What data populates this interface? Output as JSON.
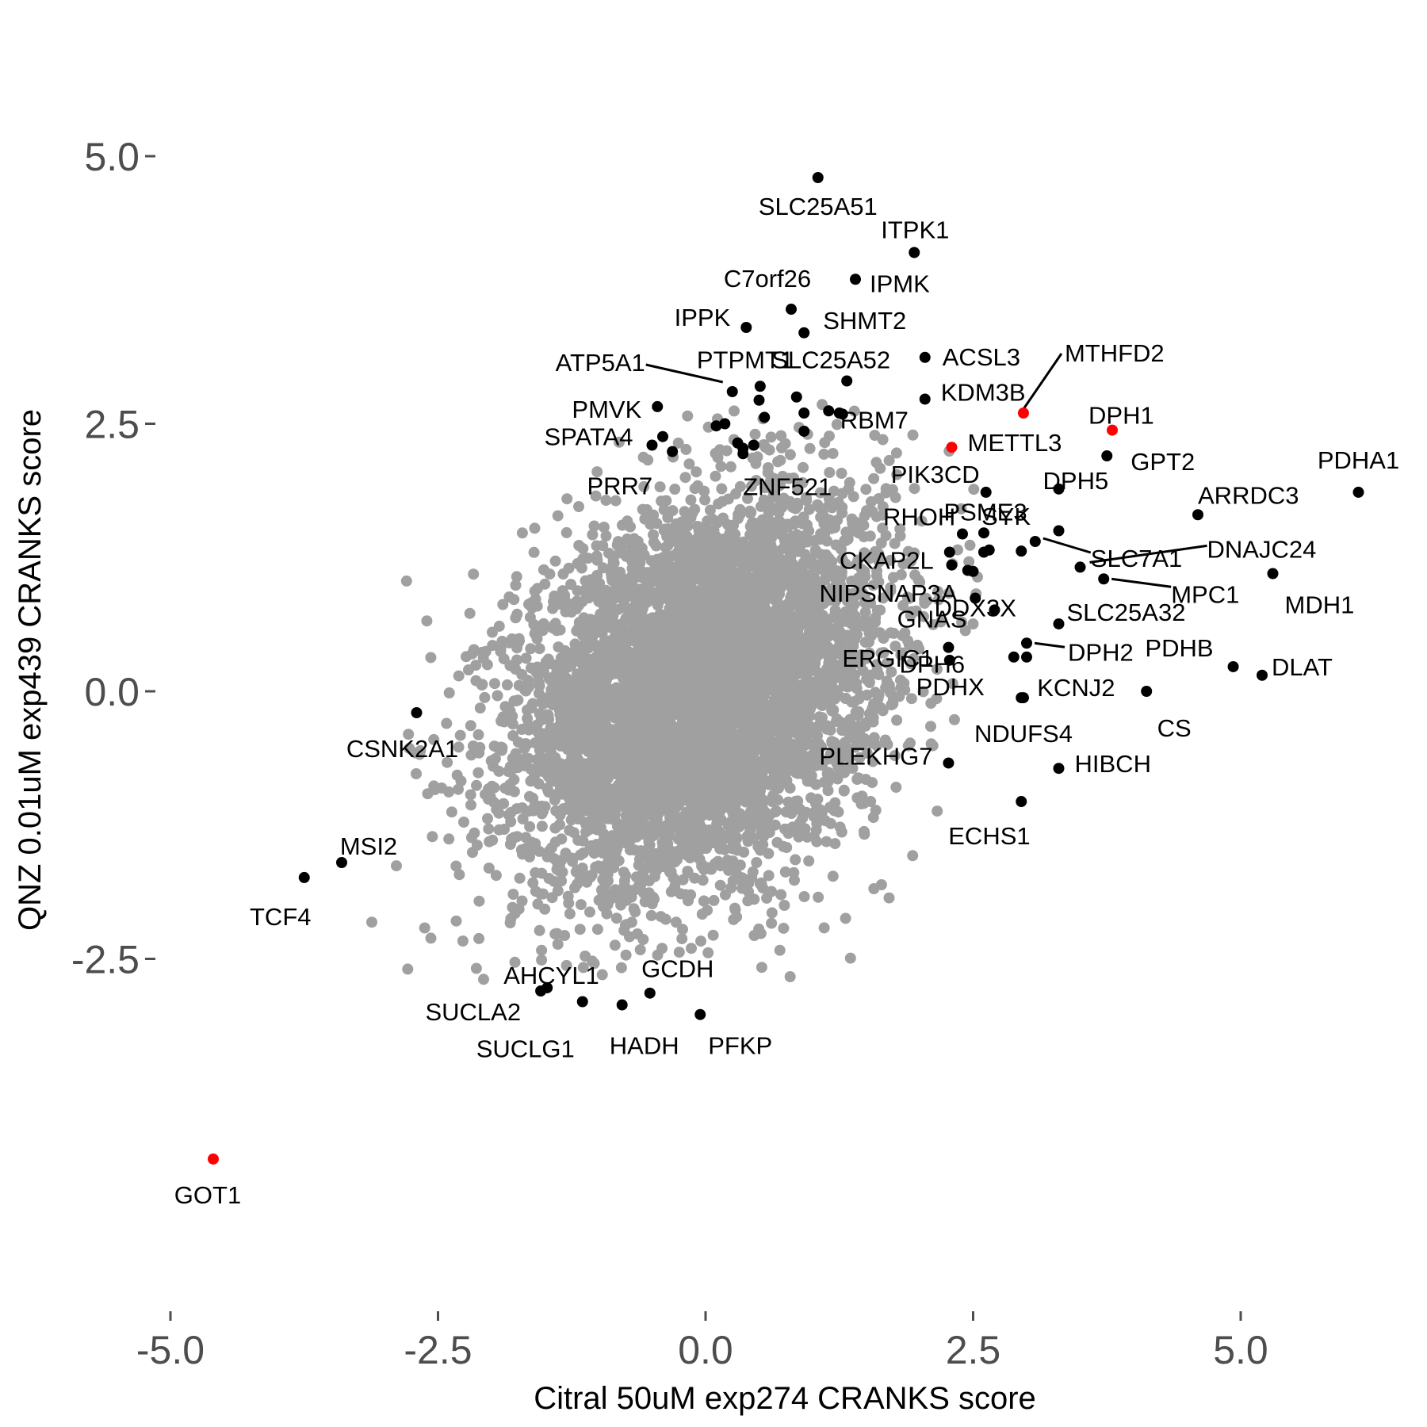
{
  "chart_data": {
    "type": "scatter",
    "xlabel": "Citral 50uM exp274 CRANKS score",
    "ylabel": "QNZ 0.01uM exp439 CRANKS score",
    "xlim": [
      -5.5,
      6.4
    ],
    "ylim": [
      -4.7,
      5.3
    ],
    "x_ticks": [
      -5.0,
      -2.5,
      0.0,
      2.5,
      5.0
    ],
    "x_tick_labels": [
      "-5.0",
      "-2.5",
      "0.0",
      "2.5",
      "5.0"
    ],
    "y_ticks": [
      -2.5,
      0.0,
      2.5,
      5.0
    ],
    "y_tick_labels": [
      "-2.5",
      "0.0",
      "2.5",
      "5.0"
    ],
    "grid": false,
    "legend": "none",
    "colors": {
      "background": "#4d4d4d00",
      "cloud": "#a0a0a0",
      "highlight": "#000000",
      "featured": "#ff0000",
      "tick_text": "#4d4d4d",
      "axis_text": "#000000"
    },
    "background_cloud": {
      "description_points": 6000,
      "center": [
        -0.05,
        0.0
      ],
      "sd": [
        0.85,
        1.0
      ],
      "color": "#a0a0a0"
    },
    "labeled_points": [
      {
        "name": "SLC25A51",
        "x": 1.05,
        "y": 4.8,
        "color": "#000000"
      },
      {
        "name": "ITPK1",
        "x": 1.95,
        "y": 4.1,
        "color": "#000000"
      },
      {
        "name": "IPMK",
        "x": 1.4,
        "y": 3.85,
        "color": "#000000"
      },
      {
        "name": "C7orf26",
        "x": 0.8,
        "y": 3.57,
        "color": "#000000"
      },
      {
        "name": "IPPK",
        "x": 0.38,
        "y": 3.4,
        "color": "#000000"
      },
      {
        "name": "SHMT2",
        "x": 0.92,
        "y": 3.35,
        "color": "#000000"
      },
      {
        "name": "ACSL3",
        "x": 2.05,
        "y": 3.12,
        "color": "#000000"
      },
      {
        "name": "MTHFD2",
        "x": 2.97,
        "y": 2.6,
        "color": "#ff0000"
      },
      {
        "name": "ATP5A1",
        "x": 0.25,
        "y": 2.8,
        "color": "#000000"
      },
      {
        "name": "PTPMT1",
        "x": 0.51,
        "y": 2.85,
        "color": "#000000"
      },
      {
        "name": "SLC25A52",
        "x": 1.32,
        "y": 2.9,
        "color": "#000000"
      },
      {
        "name": "KDM3B",
        "x": 2.05,
        "y": 2.73,
        "color": "#000000"
      },
      {
        "name": "DPH1",
        "x": 3.8,
        "y": 2.44,
        "color": "#ff0000"
      },
      {
        "name": "GPT2",
        "x": 3.75,
        "y": 2.2,
        "color": "#000000"
      },
      {
        "name": "PMVK",
        "x": -0.45,
        "y": 2.66,
        "color": "#000000"
      },
      {
        "name": "SPATA4",
        "x": -0.5,
        "y": 2.3,
        "color": "#000000"
      },
      {
        "name": "RBM7",
        "x": 1.28,
        "y": 2.59,
        "color": "#000000"
      },
      {
        "name": "METTL3",
        "x": 2.3,
        "y": 2.28,
        "color": "#ff0000"
      },
      {
        "name": "PDHA1",
        "x": 6.1,
        "y": 1.86,
        "color": "#000000"
      },
      {
        "name": "PRR7",
        "x": -0.31,
        "y": 2.24,
        "color": "#000000"
      },
      {
        "name": "ZNF521",
        "x": 0.35,
        "y": 2.22,
        "color": "#000000"
      },
      {
        "name": "PIK3CD",
        "x": 2.62,
        "y": 1.86,
        "color": "#000000"
      },
      {
        "name": "DPH5",
        "x": 3.3,
        "y": 1.89,
        "color": "#000000"
      },
      {
        "name": "ARRDC3",
        "x": 4.6,
        "y": 1.65,
        "color": "#000000"
      },
      {
        "name": "RHOH",
        "x": 2.4,
        "y": 1.47,
        "color": "#000000"
      },
      {
        "name": "SYK",
        "x": 2.6,
        "y": 1.48,
        "color": "#000000"
      },
      {
        "name": "PSME3",
        "x": 3.3,
        "y": 1.5,
        "color": "#000000"
      },
      {
        "name": "SLC7A1",
        "x": 3.08,
        "y": 1.4,
        "color": "#000000"
      },
      {
        "name": "DNAJC24",
        "x": 3.5,
        "y": 1.16,
        "color": "#000000"
      },
      {
        "name": "CKAP2L",
        "x": 2.28,
        "y": 1.3,
        "color": "#000000"
      },
      {
        "name": "MPC1",
        "x": 3.72,
        "y": 1.05,
        "color": "#000000"
      },
      {
        "name": "MDH1",
        "x": 5.3,
        "y": 1.1,
        "color": "#000000"
      },
      {
        "name": "NIPSNAP3A",
        "x": 2.5,
        "y": 1.12,
        "color": "#000000"
      },
      {
        "name": "DDX3X",
        "x": 2.52,
        "y": 0.87,
        "color": "#000000"
      },
      {
        "name": "SLC25A32",
        "x": 3.3,
        "y": 0.63,
        "color": "#000000"
      },
      {
        "name": "GNAS",
        "x": 2.7,
        "y": 0.76,
        "color": "#000000"
      },
      {
        "name": "DPH6",
        "x": 2.27,
        "y": 0.41,
        "color": "#000000"
      },
      {
        "name": "DPH2",
        "x": 3.0,
        "y": 0.45,
        "color": "#000000"
      },
      {
        "name": "PDHB",
        "x": 4.93,
        "y": 0.23,
        "color": "#000000"
      },
      {
        "name": "ERGIC1",
        "x": 2.28,
        "y": 0.29,
        "color": "#000000"
      },
      {
        "name": "PDHX",
        "x": 2.88,
        "y": 0.32,
        "color": "#000000"
      },
      {
        "name": "DLAT",
        "x": 5.2,
        "y": 0.15,
        "color": "#000000"
      },
      {
        "name": "KCNJ2",
        "x": 2.95,
        "y": -0.06,
        "color": "#000000"
      },
      {
        "name": "CS",
        "x": 4.12,
        "y": 0.0,
        "color": "#000000"
      },
      {
        "name": "NDUFS4",
        "x": 2.97,
        "y": -0.06,
        "color": "#000000"
      },
      {
        "name": "CSNK2A1",
        "x": -2.7,
        "y": -0.2,
        "color": "#000000"
      },
      {
        "name": "PLEKHG7",
        "x": 2.27,
        "y": -0.67,
        "color": "#000000"
      },
      {
        "name": "HIBCH",
        "x": 3.3,
        "y": -0.72,
        "color": "#000000"
      },
      {
        "name": "ECHS1",
        "x": 2.95,
        "y": -1.03,
        "color": "#000000"
      },
      {
        "name": "MSI2",
        "x": -3.4,
        "y": -1.6,
        "color": "#000000"
      },
      {
        "name": "TCF4",
        "x": -3.75,
        "y": -1.74,
        "color": "#000000"
      },
      {
        "name": "AHCYL1",
        "x": -1.48,
        "y": -2.77,
        "color": "#000000"
      },
      {
        "name": "GCDH",
        "x": -0.52,
        "y": -2.82,
        "color": "#000000"
      },
      {
        "name": "SUCLA2",
        "x": -1.54,
        "y": -2.8,
        "color": "#000000"
      },
      {
        "name": "SUCLG1",
        "x": -1.15,
        "y": -2.9,
        "color": "#000000"
      },
      {
        "name": "HADH",
        "x": -0.78,
        "y": -2.93,
        "color": "#000000"
      },
      {
        "name": "PFKP",
        "x": -0.05,
        "y": -3.02,
        "color": "#000000"
      },
      {
        "name": "GOT1",
        "x": -4.6,
        "y": -4.37,
        "color": "#ff0000"
      }
    ],
    "unlabeled_highlight_points": [
      {
        "x": 0.5,
        "y": 2.72
      },
      {
        "x": 0.85,
        "y": 2.75
      },
      {
        "x": 1.15,
        "y": 2.62
      },
      {
        "x": 0.92,
        "y": 2.6
      },
      {
        "x": 0.55,
        "y": 2.56
      },
      {
        "x": 1.25,
        "y": 2.6
      },
      {
        "x": 0.1,
        "y": 2.48
      },
      {
        "x": 0.18,
        "y": 2.5
      },
      {
        "x": -0.4,
        "y": 2.38
      },
      {
        "x": 0.92,
        "y": 2.43
      },
      {
        "x": 0.3,
        "y": 2.32
      },
      {
        "x": 0.45,
        "y": 2.3
      },
      {
        "x": 0.35,
        "y": 2.27
      },
      {
        "x": 2.6,
        "y": 1.3
      },
      {
        "x": 2.65,
        "y": 1.32
      },
      {
        "x": 2.95,
        "y": 1.31
      },
      {
        "x": 2.3,
        "y": 1.18
      },
      {
        "x": 3.0,
        "y": 0.32
      },
      {
        "x": 2.45,
        "y": 1.13
      }
    ]
  }
}
